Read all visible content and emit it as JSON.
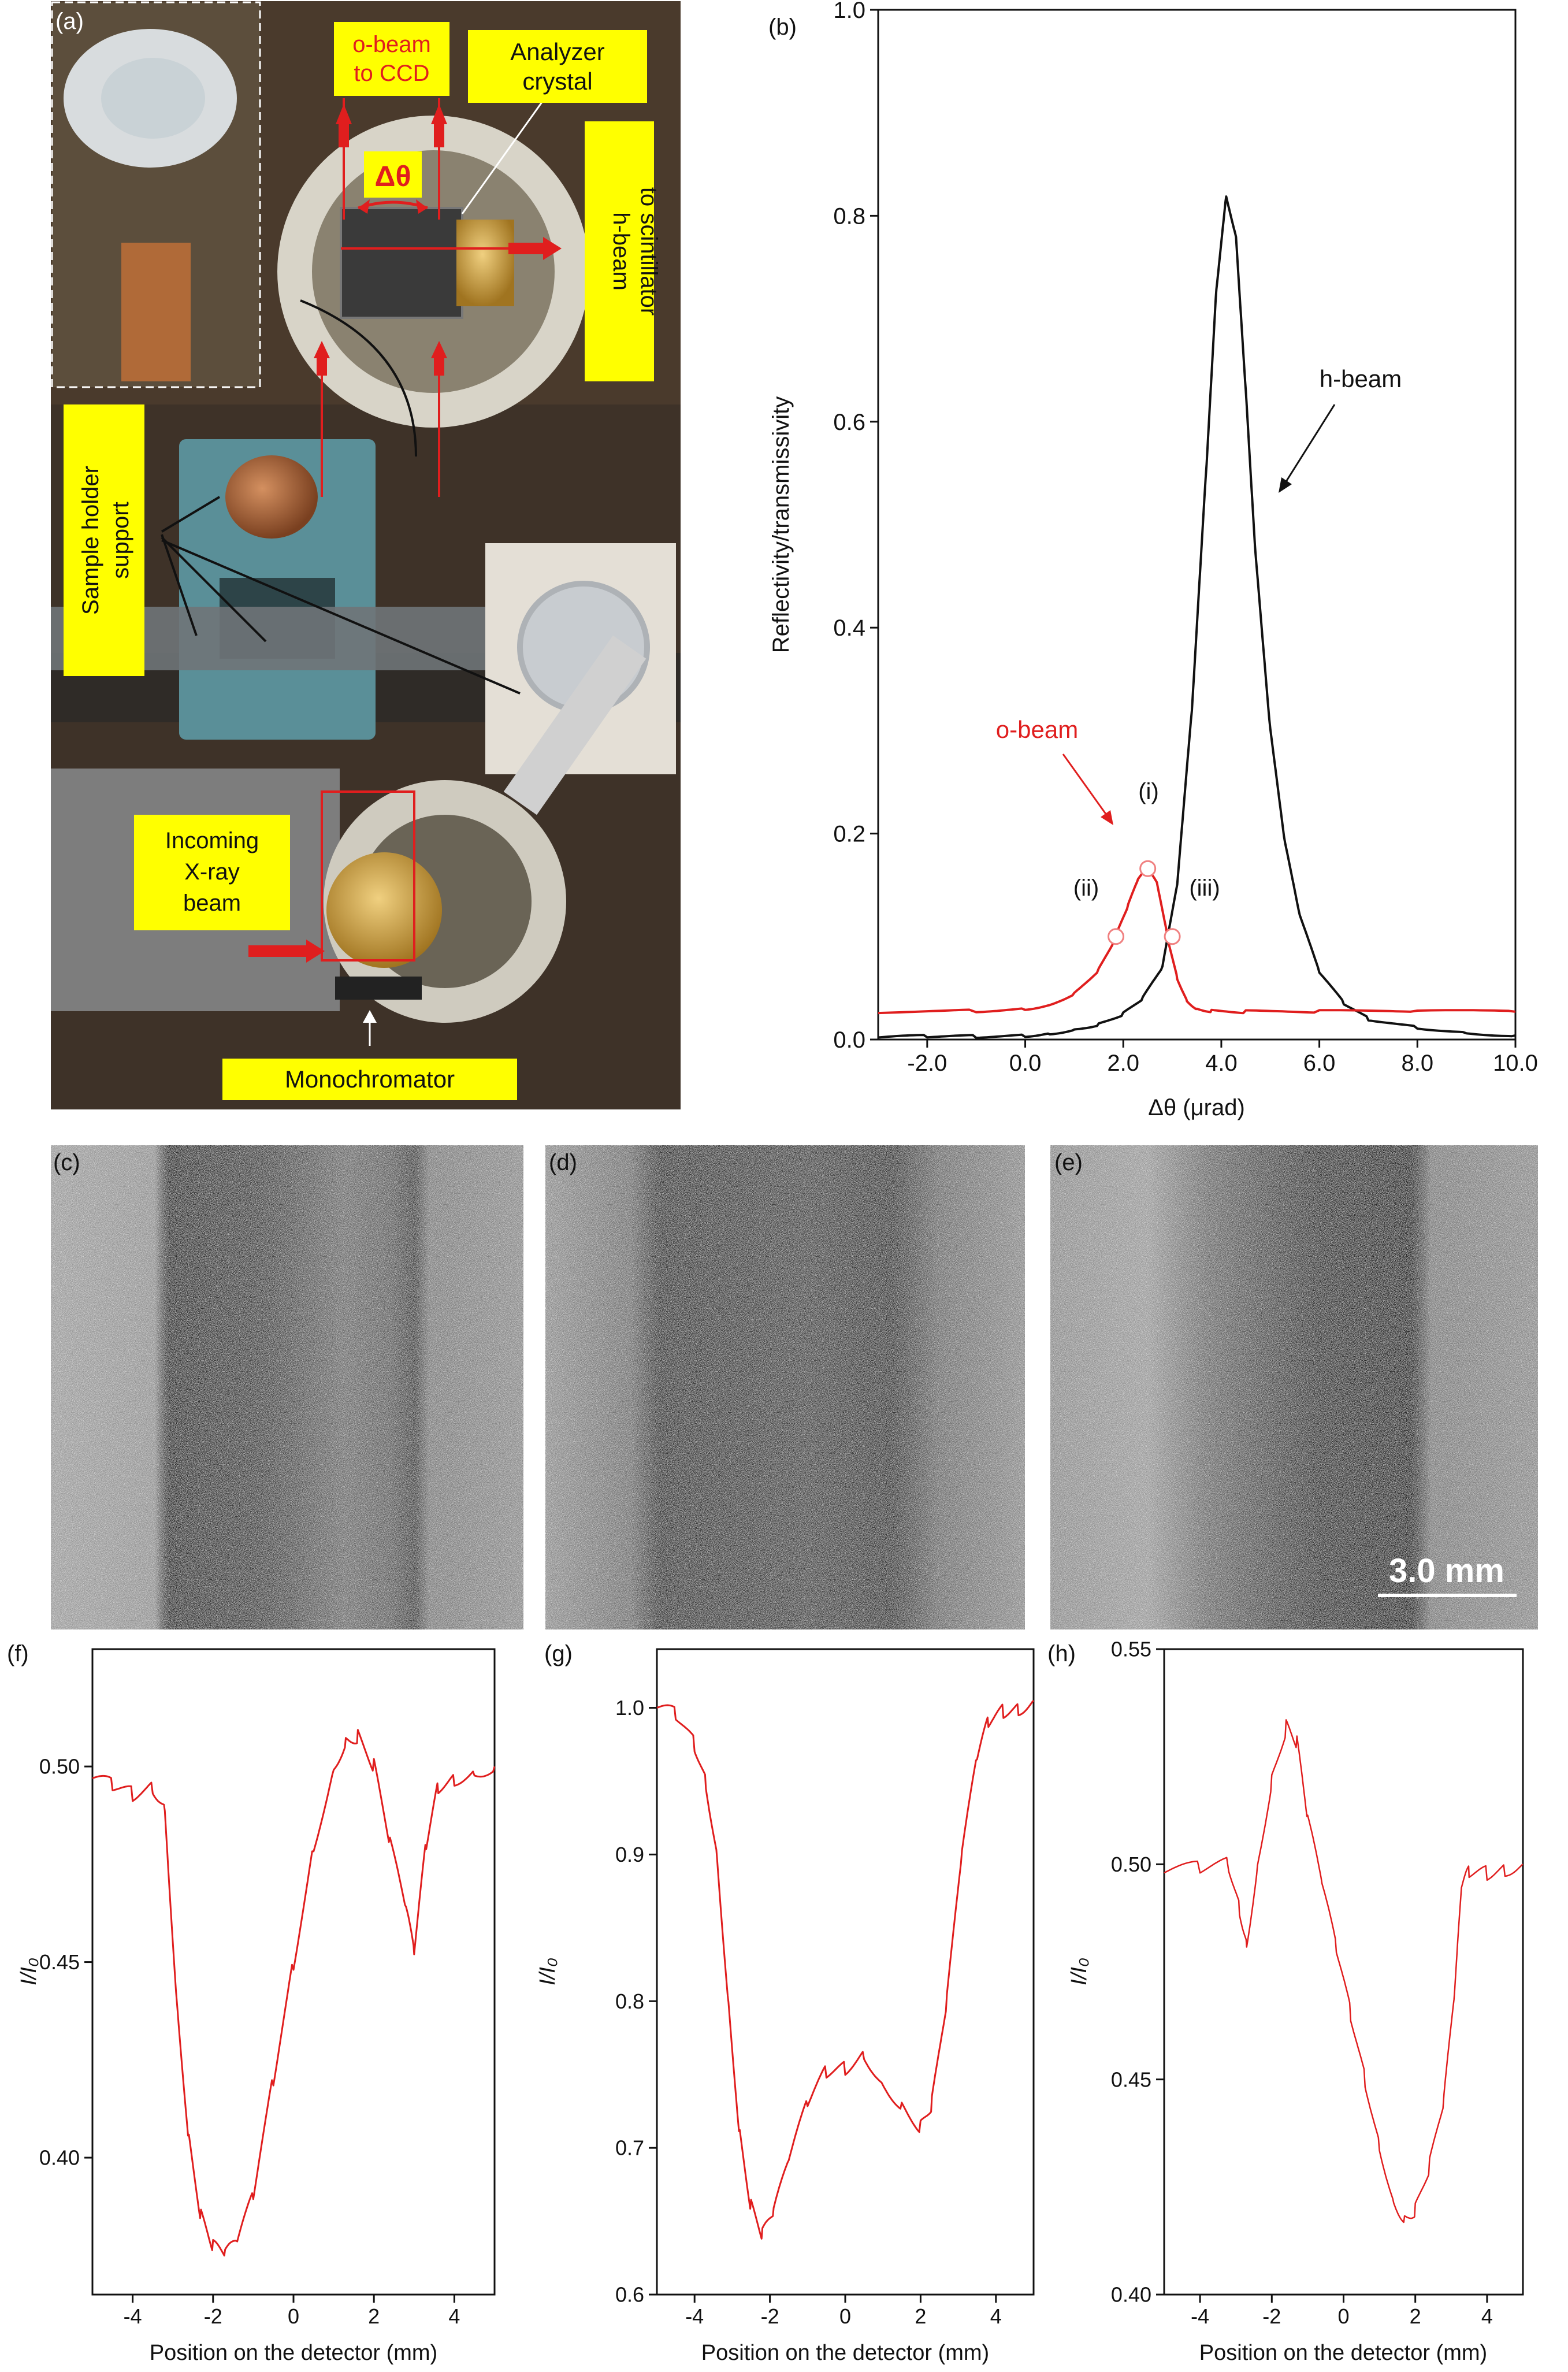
{
  "panels": {
    "a": "(a)",
    "b": "(b)",
    "c": "(c)",
    "d": "(d)",
    "e": "(e)",
    "f": "(f)",
    "g": "(g)",
    "h": "(h)"
  },
  "photo_labels": {
    "o_beam": [
      "o-beam",
      "to CCD"
    ],
    "analyzer": [
      "Analyzer",
      "crystal"
    ],
    "delta_theta": "Δθ",
    "h_beam": [
      "h-beam",
      "to scintillator"
    ],
    "sample_holder": [
      "Sample holder",
      "support"
    ],
    "incoming": [
      "Incoming",
      "X-ray",
      "beam"
    ],
    "monochromator": "Monochromator"
  },
  "scale_bar_label": "3.0 mm",
  "colors": {
    "o_beam": "#e01e1e",
    "h_beam": "#111111",
    "profile": "#e01e1e",
    "label_bg": "#ffff00"
  },
  "chart_data": [
    {
      "id": "b",
      "type": "line",
      "xlabel": "Δθ (μrad)",
      "ylabel": "Reflectivity/transmissivity",
      "xlim": [
        -3.0,
        10.0
      ],
      "ylim": [
        0.0,
        1.0
      ],
      "xticks": [
        "-2.0",
        "0.0",
        "2.0",
        "4.0",
        "6.0",
        "8.0",
        "10.0"
      ],
      "yticks": [
        "0.0",
        "0.2",
        "0.4",
        "0.6",
        "0.8",
        "1.0"
      ],
      "annotations": [
        "h-beam",
        "o-beam",
        "(i)",
        "(ii)",
        "(iii)"
      ],
      "marked_points": [
        {
          "label": "(i)",
          "x": 2.5,
          "y": 0.166
        },
        {
          "label": "(ii)",
          "x": 1.85,
          "y": 0.1
        },
        {
          "label": "(iii)",
          "x": 3.0,
          "y": 0.1
        }
      ],
      "series": [
        {
          "name": "h-beam",
          "x": [
            -3.0,
            -2.0,
            -1.0,
            0.0,
            0.5,
            1.0,
            1.5,
            2.0,
            2.4,
            2.8,
            3.1,
            3.4,
            3.7,
            3.9,
            4.1,
            4.3,
            4.5,
            4.7,
            5.0,
            5.3,
            5.6,
            6.0,
            6.5,
            7.0,
            8.0,
            9.0,
            10.0
          ],
          "y": [
            0.002,
            0.003,
            0.003,
            0.004,
            0.006,
            0.01,
            0.015,
            0.025,
            0.04,
            0.07,
            0.15,
            0.32,
            0.56,
            0.73,
            0.82,
            0.78,
            0.63,
            0.47,
            0.3,
            0.19,
            0.12,
            0.065,
            0.035,
            0.02,
            0.012,
            0.007,
            0.004
          ]
        },
        {
          "name": "o-beam",
          "x": [
            -3.0,
            -1.0,
            0.0,
            0.5,
            1.0,
            1.5,
            1.8,
            2.1,
            2.3,
            2.5,
            2.7,
            2.9,
            3.1,
            3.3,
            3.5,
            3.8,
            4.5,
            6.0,
            8.0,
            10.0
          ],
          "y": [
            0.027,
            0.028,
            0.03,
            0.034,
            0.045,
            0.068,
            0.095,
            0.13,
            0.155,
            0.166,
            0.15,
            0.1,
            0.06,
            0.038,
            0.03,
            0.028,
            0.027,
            0.027,
            0.027,
            0.027
          ]
        }
      ]
    },
    {
      "id": "f",
      "type": "line",
      "xlabel": "Position on the detector (mm)",
      "ylabel": "I/I₀",
      "xlim": [
        -5,
        5
      ],
      "ylim": [
        0.365,
        0.53
      ],
      "xticks": [
        "-4",
        "-2",
        "0",
        "2",
        "4"
      ],
      "yticks": [
        "0.40",
        "0.45",
        "0.50"
      ],
      "series": [
        {
          "name": "",
          "x": [
            -5,
            -4.5,
            -4,
            -3.5,
            -3.2,
            -2.9,
            -2.6,
            -2.3,
            -2.0,
            -1.7,
            -1.4,
            -1.0,
            -0.5,
            0.0,
            0.5,
            1.0,
            1.3,
            1.6,
            2.0,
            2.4,
            2.8,
            3.0,
            3.3,
            3.6,
            4.0,
            4.5,
            5.0
          ],
          "y": [
            0.497,
            0.495,
            0.493,
            0.495,
            0.49,
            0.44,
            0.405,
            0.385,
            0.377,
            0.375,
            0.378,
            0.39,
            0.42,
            0.45,
            0.48,
            0.5,
            0.507,
            0.508,
            0.5,
            0.48,
            0.463,
            0.452,
            0.48,
            0.495,
            0.497,
            0.499,
            0.5
          ]
        }
      ]
    },
    {
      "id": "g",
      "type": "line",
      "xlabel": "Position on the detector (mm)",
      "ylabel": "I/I₀",
      "xlim": [
        -5,
        5
      ],
      "ylim": [
        0.6,
        1.04
      ],
      "xticks": [
        "-4",
        "-2",
        "0",
        "2",
        "4"
      ],
      "yticks": [
        "0.6",
        "0.7",
        "0.8",
        "0.9",
        "1.0"
      ],
      "series": [
        {
          "name": "",
          "x": [
            -5,
            -4.5,
            -4.0,
            -3.7,
            -3.4,
            -3.1,
            -2.8,
            -2.5,
            -2.2,
            -1.9,
            -1.5,
            -1.0,
            -0.5,
            0.0,
            0.5,
            1.0,
            1.5,
            2.0,
            2.3,
            2.7,
            3.1,
            3.5,
            3.8,
            4.2,
            4.6,
            5.0
          ],
          "y": [
            1.0,
            0.995,
            0.975,
            0.95,
            0.9,
            0.8,
            0.71,
            0.66,
            0.64,
            0.655,
            0.69,
            0.73,
            0.752,
            0.755,
            0.765,
            0.745,
            0.73,
            0.715,
            0.73,
            0.8,
            0.9,
            0.965,
            0.99,
            0.998,
            1.0,
            1.005
          ]
        }
      ]
    },
    {
      "id": "h",
      "type": "line",
      "xlabel": "Position on the detector (mm)",
      "ylabel": "I/I₀",
      "xlim": [
        -5,
        5
      ],
      "ylim": [
        0.4,
        0.55
      ],
      "xticks": [
        "-4",
        "-2",
        "0",
        "2",
        "4"
      ],
      "yticks": [
        "0.40",
        "0.45",
        "0.50",
        "0.55"
      ],
      "series": [
        {
          "name": "",
          "x": [
            -5,
            -4.0,
            -3.2,
            -2.9,
            -2.7,
            -2.4,
            -2.0,
            -1.6,
            -1.3,
            -1.0,
            -0.6,
            -0.2,
            0.2,
            0.6,
            1.0,
            1.4,
            1.7,
            2.0,
            2.4,
            2.8,
            3.1,
            3.3,
            3.5,
            4.0,
            4.5,
            5.0
          ],
          "y": [
            0.498,
            0.499,
            0.5,
            0.49,
            0.482,
            0.5,
            0.52,
            0.532,
            0.528,
            0.51,
            0.495,
            0.48,
            0.465,
            0.45,
            0.435,
            0.422,
            0.418,
            0.42,
            0.43,
            0.445,
            0.47,
            0.495,
            0.498,
            0.498,
            0.499,
            0.5
          ]
        }
      ]
    }
  ]
}
